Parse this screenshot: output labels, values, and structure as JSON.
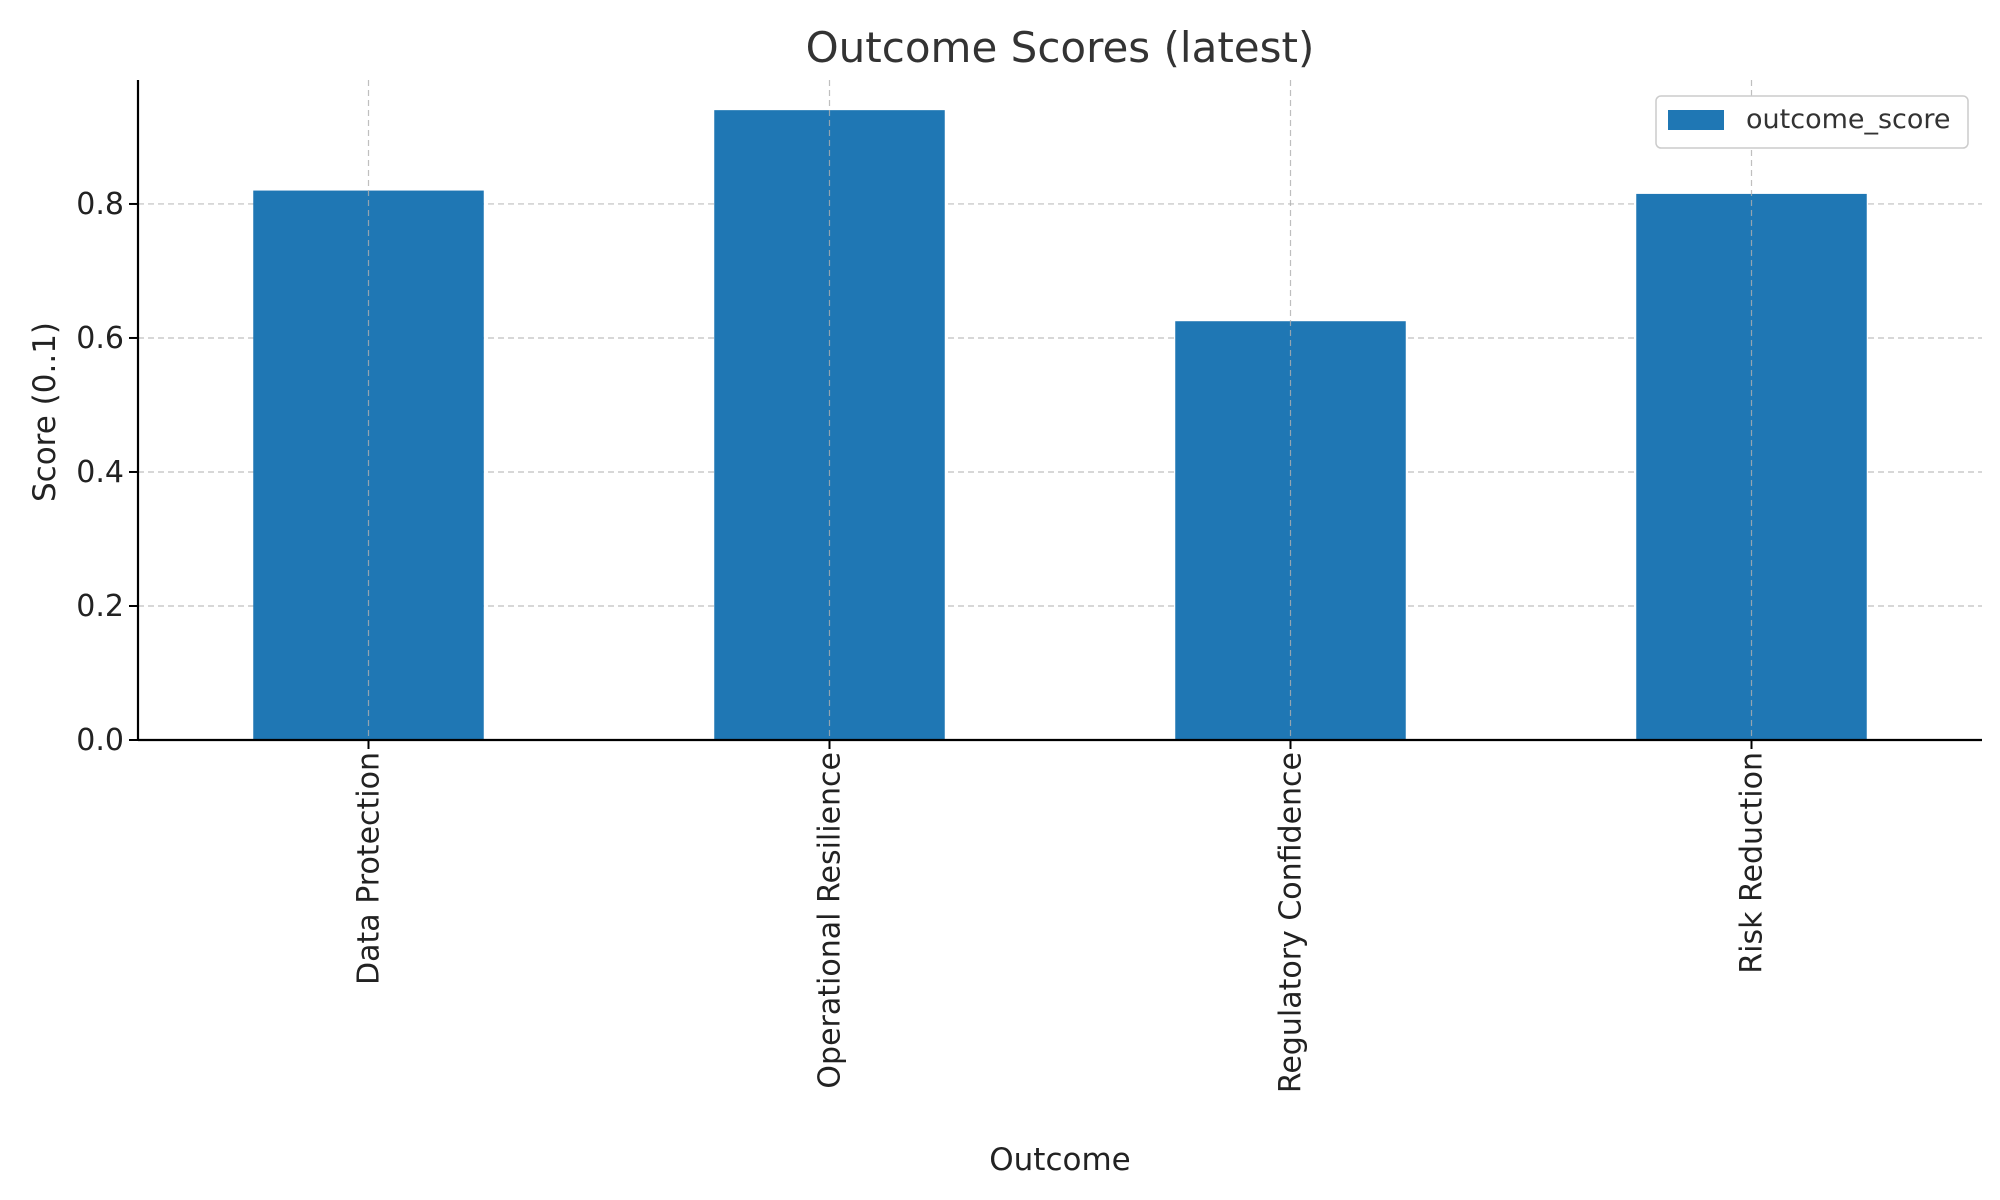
{
  "chart_data": {
    "type": "bar",
    "title": "Outcome Scores (latest)",
    "xlabel": "Outcome",
    "ylabel": "Score (0..1)",
    "categories": [
      "Data Protection",
      "Operational Resilience",
      "Regulatory Confidence",
      "Risk Reduction"
    ],
    "series": [
      {
        "name": "outcome_score",
        "values": [
          0.82,
          0.94,
          0.625,
          0.815
        ]
      }
    ],
    "ylim": [
      0,
      0.985
    ],
    "yticks": [
      0.0,
      0.2,
      0.4,
      0.6,
      0.8
    ],
    "ytick_labels": [
      "0.0",
      "0.2",
      "0.4",
      "0.6",
      "0.8"
    ],
    "grid": true,
    "legend_position": "top-right",
    "bar_color": "#1f77b4"
  }
}
